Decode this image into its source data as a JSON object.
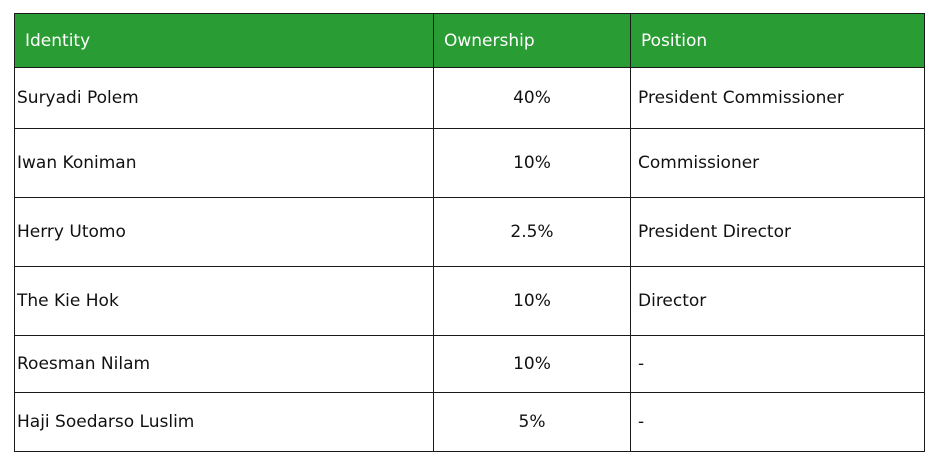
{
  "table": {
    "headers": {
      "identity": "Identity",
      "ownership": "Ownership",
      "position": "Position"
    },
    "header_color": "#2a9c34",
    "rows": [
      {
        "identity": "Suryadi Polem",
        "ownership": "40%",
        "position": "President Commissioner"
      },
      {
        "identity": "Iwan Koniman",
        "ownership": "10%",
        "position": "Commissioner"
      },
      {
        "identity": "Herry Utomo",
        "ownership": "2.5%",
        "position": "President Director"
      },
      {
        "identity": "The Kie Hok",
        "ownership": "10%",
        "position": "Director"
      },
      {
        "identity": "Roesman Nilam",
        "ownership": "10%",
        "position": "-"
      },
      {
        "identity": "Haji Soedarso Luslim",
        "ownership": "5%",
        "position": "-"
      }
    ]
  }
}
